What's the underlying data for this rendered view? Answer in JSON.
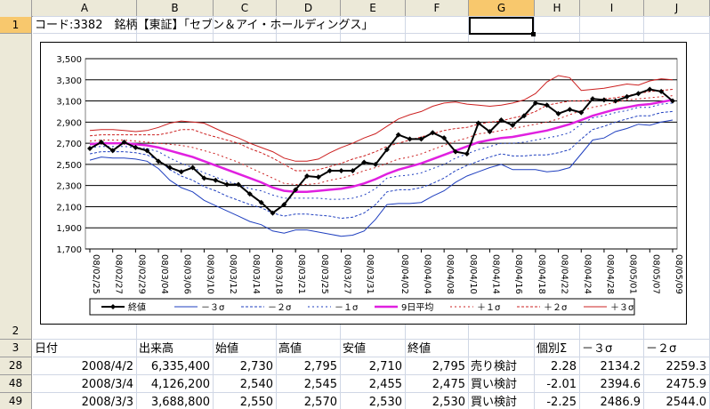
{
  "columns": [
    "A",
    "B",
    "C",
    "D",
    "E",
    "F",
    "G",
    "H",
    "I",
    "J"
  ],
  "active_column": "G",
  "rows": {
    "row1": {
      "num": "1",
      "text": "コード:3382　銘柄【東証】「セブン＆アイ・ホールディングス」"
    },
    "row2": {
      "num": "2"
    },
    "row3": {
      "num": "3",
      "cells": [
        "日付",
        "出来高",
        "始値",
        "高値",
        "安値",
        "終値",
        "",
        "個別Σ",
        "－３σ",
        "－２σ"
      ]
    },
    "data_rows": [
      {
        "num": "28",
        "cells": [
          "2008/4/2",
          "6,335,400",
          "2,730",
          "2,795",
          "2,710",
          "2,795",
          "売り検討",
          "2.28",
          "2134.2",
          "2259.3"
        ]
      },
      {
        "num": "48",
        "cells": [
          "2008/3/4",
          "4,126,200",
          "2,540",
          "2,545",
          "2,455",
          "2,475",
          "買い検討",
          "-2.01",
          "2394.6",
          "2475.9"
        ]
      },
      {
        "num": "49",
        "cells": [
          "2008/3/3",
          "3,688,800",
          "2,550",
          "2,570",
          "2,530",
          "2,530",
          "買い検討",
          "-2.25",
          "2486.9",
          "2544.0"
        ]
      }
    ]
  },
  "chart_data": {
    "type": "line",
    "ylim": [
      1700,
      3500
    ],
    "yticks": [
      1700,
      1900,
      2100,
      2300,
      2500,
      2700,
      2900,
      3100,
      3300,
      3500
    ],
    "ytick_labels": [
      "1,700",
      "1,900",
      "2,100",
      "2,300",
      "2,500",
      "2,700",
      "2,900",
      "3,100",
      "3,300",
      "3,500"
    ],
    "xtick_labels": [
      "08/02/25",
      "08/02/27",
      "08/02/29",
      "08/03/04",
      "08/03/06",
      "08/03/10",
      "08/03/12",
      "08/03/14",
      "08/03/18",
      "08/03/21",
      "08/03/25",
      "08/03/27",
      "08/03/31",
      "08/04/02",
      "08/04/04",
      "08/04/08",
      "08/04/10",
      "08/04/14",
      "08/04/16",
      "08/04/18",
      "08/04/22",
      "08/04/24",
      "08/04/28",
      "08/05/01",
      "08/05/07",
      "08/05/09"
    ],
    "series": [
      {
        "name": "終値",
        "color": "#000000",
        "style": "marker",
        "values": [
          2650,
          2710,
          2630,
          2710,
          2660,
          2630,
          2530,
          2470,
          2430,
          2470,
          2370,
          2350,
          2310,
          2310,
          2220,
          2140,
          2040,
          2120,
          2260,
          2390,
          2380,
          2440,
          2440,
          2440,
          2520,
          2500,
          2640,
          2780,
          2740,
          2740,
          2800,
          2750,
          2620,
          2600,
          2890,
          2810,
          2920,
          2870,
          2960,
          3080,
          3060,
          2980,
          3020,
          2990,
          3120,
          3110,
          3100,
          3140,
          3170,
          3210,
          3190,
          3100
        ]
      },
      {
        "name": "－３σ",
        "color": "#1f3fbf",
        "style": "solid-thin",
        "values": [
          2540,
          2570,
          2560,
          2560,
          2550,
          2530,
          2460,
          2350,
          2280,
          2240,
          2160,
          2110,
          2060,
          2010,
          1960,
          1930,
          1870,
          1850,
          1880,
          1880,
          1860,
          1840,
          1820,
          1830,
          1870,
          1980,
          2120,
          2130,
          2130,
          2140,
          2200,
          2250,
          2330,
          2390,
          2430,
          2470,
          2500,
          2450,
          2450,
          2450,
          2430,
          2440,
          2470,
          2600,
          2730,
          2750,
          2810,
          2840,
          2880,
          2870,
          2900,
          2920
        ]
      },
      {
        "name": "－２σ",
        "color": "#1f3fbf",
        "style": "dashed",
        "values": [
          2600,
          2620,
          2620,
          2620,
          2610,
          2590,
          2540,
          2450,
          2390,
          2350,
          2290,
          2250,
          2200,
          2160,
          2120,
          2090,
          2040,
          2010,
          2030,
          2030,
          2020,
          2010,
          1990,
          2000,
          2040,
          2120,
          2240,
          2260,
          2260,
          2280,
          2320,
          2370,
          2440,
          2490,
          2530,
          2570,
          2600,
          2580,
          2580,
          2590,
          2590,
          2610,
          2640,
          2740,
          2830,
          2860,
          2900,
          2930,
          2960,
          2960,
          2990,
          3000
        ]
      },
      {
        "name": "－１σ",
        "color": "#1f3fbf",
        "style": "dashed-sparse",
        "values": [
          2660,
          2670,
          2670,
          2670,
          2660,
          2650,
          2620,
          2560,
          2510,
          2470,
          2420,
          2380,
          2340,
          2310,
          2270,
          2250,
          2210,
          2180,
          2180,
          2180,
          2180,
          2170,
          2170,
          2180,
          2210,
          2270,
          2370,
          2390,
          2400,
          2420,
          2460,
          2500,
          2560,
          2600,
          2640,
          2670,
          2700,
          2700,
          2710,
          2730,
          2750,
          2770,
          2800,
          2880,
          2940,
          2960,
          2990,
          3010,
          3040,
          3040,
          3070,
          3080
        ]
      },
      {
        "name": "9日平均",
        "color": "#e020e0",
        "style": "thick",
        "values": [
          2690,
          2700,
          2700,
          2700,
          2690,
          2680,
          2660,
          2630,
          2600,
          2570,
          2530,
          2490,
          2450,
          2410,
          2370,
          2330,
          2280,
          2250,
          2240,
          2240,
          2250,
          2260,
          2270,
          2290,
          2320,
          2360,
          2410,
          2450,
          2480,
          2510,
          2550,
          2590,
          2630,
          2670,
          2710,
          2730,
          2750,
          2760,
          2780,
          2800,
          2820,
          2850,
          2880,
          2920,
          2960,
          2990,
          3020,
          3040,
          3060,
          3070,
          3090,
          3110
        ]
      },
      {
        "name": "＋１σ",
        "color": "#cc2020",
        "style": "dashed-sparse",
        "values": [
          2720,
          2730,
          2730,
          2730,
          2720,
          2710,
          2700,
          2690,
          2680,
          2660,
          2630,
          2600,
          2560,
          2520,
          2470,
          2420,
          2370,
          2320,
          2310,
          2310,
          2320,
          2350,
          2370,
          2400,
          2440,
          2470,
          2510,
          2550,
          2570,
          2600,
          2640,
          2680,
          2720,
          2750,
          2790,
          2800,
          2820,
          2840,
          2860,
          2880,
          2900,
          2930,
          2970,
          3010,
          3040,
          3060,
          3090,
          3110,
          3120,
          3130,
          3140,
          3150
        ]
      },
      {
        "name": "＋２σ",
        "color": "#cc2020",
        "style": "dashed",
        "values": [
          2770,
          2780,
          2780,
          2780,
          2780,
          2780,
          2780,
          2800,
          2830,
          2830,
          2790,
          2760,
          2730,
          2700,
          2650,
          2610,
          2560,
          2500,
          2440,
          2440,
          2450,
          2480,
          2510,
          2550,
          2580,
          2620,
          2670,
          2700,
          2730,
          2760,
          2790,
          2820,
          2840,
          2850,
          2880,
          2900,
          2910,
          2940,
          2960,
          3000,
          3060,
          3080,
          3100,
          3100,
          3110,
          3120,
          3130,
          3150,
          3170,
          3190,
          3200,
          3210
        ]
      },
      {
        "name": "＋３σ",
        "color": "#cc2020",
        "style": "solid-thin",
        "values": [
          2820,
          2830,
          2830,
          2820,
          2810,
          2820,
          2850,
          2890,
          2910,
          2900,
          2890,
          2840,
          2790,
          2750,
          2700,
          2660,
          2620,
          2560,
          2530,
          2530,
          2550,
          2610,
          2660,
          2700,
          2750,
          2790,
          2860,
          2930,
          2970,
          3000,
          3050,
          3080,
          3090,
          3070,
          3060,
          3050,
          3060,
          3080,
          3110,
          3170,
          3280,
          3340,
          3320,
          3200,
          3210,
          3220,
          3240,
          3260,
          3250,
          3290,
          3310,
          3300
        ]
      }
    ]
  }
}
